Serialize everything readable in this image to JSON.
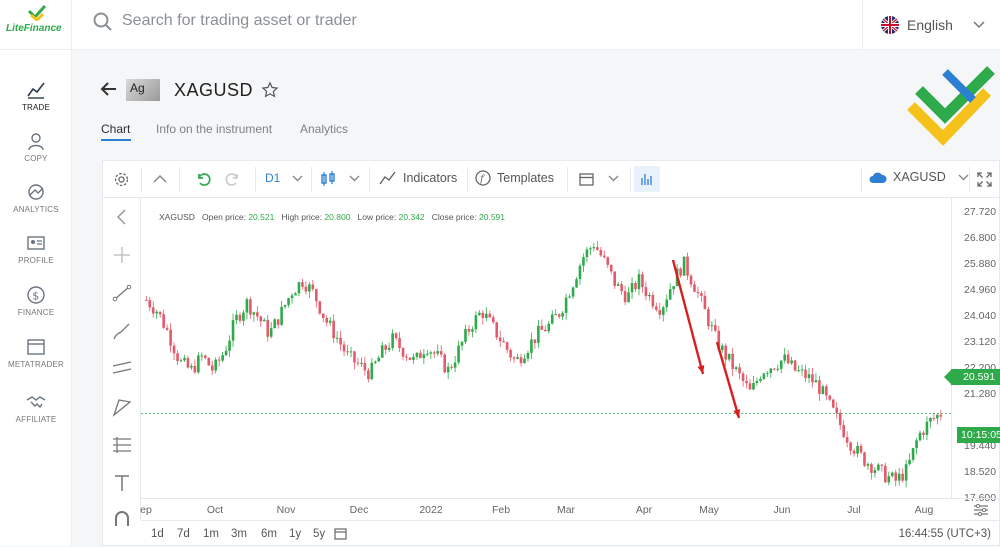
{
  "brand": {
    "name": "LiteFinance"
  },
  "search": {
    "placeholder": "Search for trading asset or trader"
  },
  "language": {
    "label": "English"
  },
  "sidebar": {
    "items": [
      {
        "label": "TRADE",
        "icon": "chart-icon",
        "active": true
      },
      {
        "label": "COPY",
        "icon": "user-icon",
        "active": false
      },
      {
        "label": "ANALYTICS",
        "icon": "analytics-icon",
        "active": false
      },
      {
        "label": "PROFILE",
        "icon": "profile-icon",
        "active": false
      },
      {
        "label": "FINANCE",
        "icon": "dollar-icon",
        "active": false
      },
      {
        "label": "METATRADER",
        "icon": "window-icon",
        "active": false
      },
      {
        "label": "AFFILIATE",
        "icon": "handshake-icon",
        "active": false
      }
    ]
  },
  "instrument": {
    "badge": "Ag",
    "symbol": "XAGUSD"
  },
  "tabs": [
    {
      "label": "Chart",
      "active": true
    },
    {
      "label": "Info on the instrument",
      "active": false
    },
    {
      "label": "Analytics",
      "active": false
    }
  ],
  "toolbar": {
    "timeframe": "D1",
    "indicators": "Indicators",
    "templates": "Templates",
    "symbol": "XAGUSD"
  },
  "ohlc": {
    "symbol": "XAGUSD",
    "open_label": "Open price:",
    "open": "20.521",
    "high_label": "High price:",
    "high": "20.800",
    "low_label": "Low price:",
    "low": "20.342",
    "close_label": "Close price:",
    "close": "20.591"
  },
  "price_scale": {
    "labels": [
      "27.720",
      "26.800",
      "25.880",
      "24.960",
      "24.040",
      "23.120",
      "22.200",
      "21.280",
      "19.440",
      "18.520",
      "17.600"
    ],
    "current_price": "20.591",
    "countdown": "10:15:05"
  },
  "time_axis": {
    "labels": [
      "ep",
      "Oct",
      "Nov",
      "Dec",
      "2022",
      "Feb",
      "Mar",
      "Apr",
      "May",
      "Jun",
      "Jul",
      "Aug"
    ]
  },
  "periods": [
    "1d",
    "7d",
    "1m",
    "3m",
    "6m",
    "1y",
    "5y"
  ],
  "clock": "16:44:55 (UTC+3)",
  "colors": {
    "up": "#2eaa4a",
    "down": "#e45a6a",
    "accent": "#2d7fd3",
    "arrow": "#d81e1e",
    "logo_green": "#2eaa4a",
    "logo_yellow": "#f4c21a"
  },
  "chart_data": {
    "type": "candlestick",
    "title": "",
    "ylim": [
      17.6,
      28.2
    ],
    "x_axis": [
      "ep",
      "Oct",
      "Nov",
      "Dec",
      "2022",
      "Feb",
      "Mar",
      "Apr",
      "May",
      "Jun",
      "Jul",
      "Aug"
    ],
    "close_series": [
      24.6,
      24.2,
      23.4,
      22.4,
      22.1,
      22.6,
      22.1,
      22.8,
      23.9,
      24.5,
      24.0,
      23.4,
      24.1,
      24.9,
      25.3,
      24.8,
      23.9,
      23.3,
      22.6,
      22.3,
      22.0,
      22.7,
      23.2,
      22.8,
      22.4,
      23.0,
      22.6,
      22.1,
      22.9,
      23.7,
      24.2,
      23.6,
      23.0,
      22.4,
      22.9,
      23.4,
      23.7,
      24.2,
      25.1,
      26.1,
      26.6,
      25.9,
      25.1,
      24.7,
      25.3,
      24.7,
      24.3,
      25.2,
      25.9,
      25.1,
      24.1,
      23.1,
      22.5,
      21.9,
      21.3,
      22.1,
      22.3,
      22.5,
      22.1,
      21.9,
      21.6,
      20.9,
      20.2,
      19.5,
      19.0,
      18.7,
      18.4,
      18.2,
      18.6,
      19.8,
      20.3,
      20.59
    ],
    "last_price": 20.591
  }
}
